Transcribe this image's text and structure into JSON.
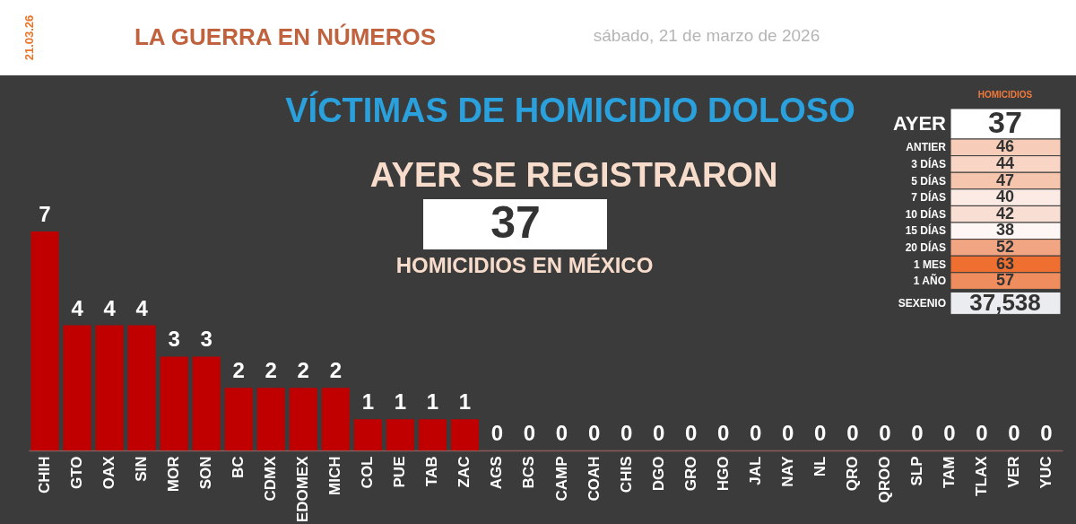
{
  "chart_data": [
    {
      "type": "bar",
      "title": "VÍCTIMAS DE HOMICIDIO DOLOSO",
      "annotations": [
        "21.03.26",
        "LA GUERRA EN NÚMEROS",
        "sábado, 21 de marzo de 2026",
        "AYER SE REGISTRARON",
        "37",
        "HOMICIDIOS EN MÉXICO"
      ],
      "categories": [
        "CHIH",
        "GTO",
        "OAX",
        "SIN",
        "MOR",
        "SON",
        "BC",
        "CDMX",
        "EDOMEX",
        "MICH",
        "COL",
        "PUE",
        "TAB",
        "ZAC",
        "AGS",
        "BCS",
        "CAMP",
        "COAH",
        "CHIS",
        "DGO",
        "GRO",
        "HGO",
        "JAL",
        "NAY",
        "NL",
        "QRO",
        "QROO",
        "SLP",
        "TAM",
        "TLAX",
        "VER",
        "YUC"
      ],
      "values": [
        7,
        4,
        4,
        4,
        3,
        3,
        2,
        2,
        2,
        2,
        1,
        1,
        1,
        1,
        0,
        0,
        0,
        0,
        0,
        0,
        0,
        0,
        0,
        0,
        0,
        0,
        0,
        0,
        0,
        0,
        0,
        0
      ],
      "color": "#c00000",
      "data_labels": true,
      "tick_labels": "x"
    },
    {
      "type": "other",
      "title": "HOMICIDIOS",
      "categories": [
        "AYER",
        "ANTIER",
        "3 DÍAS",
        "5 DÍAS",
        "7 DÍAS",
        "10 DÍAS",
        "15 DÍAS",
        "20 DÍAS",
        "1 MES",
        "1 AÑO",
        "SEXENIO"
      ],
      "values": [
        37,
        46,
        44,
        47,
        40,
        42,
        38,
        52,
        63,
        57,
        37538
      ],
      "value_labels": [
        "37",
        "46",
        "44",
        "47",
        "40",
        "42",
        "38",
        "52",
        "63",
        "57",
        "37,538"
      ],
      "colors": [
        "#ffffff",
        "#f7cdb9",
        "#f8d5c4",
        "#f5c5ae",
        "#fbebe4",
        "#f9dfd3",
        "#fdf6f4",
        "#f2a582",
        "#ee6f30",
        "#f08d5e",
        "#eaecf0"
      ]
    }
  ]
}
